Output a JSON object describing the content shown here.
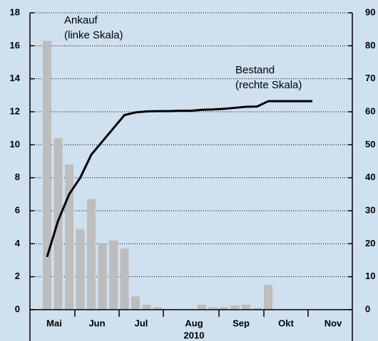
{
  "chart_data": {
    "type": "bar_line",
    "categories": [
      null,
      null,
      null,
      null,
      null,
      null,
      null,
      null,
      null,
      null,
      null,
      null,
      null,
      null,
      null,
      null,
      null,
      null,
      null,
      null,
      null,
      null,
      null,
      null,
      null,
      null,
      null,
      null
    ],
    "months": [
      "Mai",
      "Jun",
      "Jul",
      "Aug",
      "Sep",
      "Okt",
      "Nov"
    ],
    "year": "2010",
    "annotations": [
      "Ankauf",
      "(linke Skala)",
      "Bestand",
      "(rechte Skala)"
    ],
    "series": [
      {
        "name": "Ankauf",
        "color": "#bdbdbd",
        "axis": "y",
        "values": [
          16.3,
          10.4,
          8.8,
          4.9,
          6.7,
          4.0,
          4.2,
          3.7,
          0.8,
          0.3,
          0.15,
          0.05,
          0,
          0,
          0.3,
          0.15,
          0.15,
          0.25,
          0.3,
          0.1,
          1.5,
          0,
          0,
          0,
          0,
          0,
          0,
          0
        ]
      },
      {
        "name": "Bestand",
        "color": "#000000",
        "axis": "y2",
        "values": [
          16,
          27,
          35,
          40,
          47,
          51,
          55,
          59,
          59.8,
          60.1,
          60.2,
          60.2,
          60.3,
          60.3,
          60.6,
          60.7,
          60.9,
          61.2,
          61.5,
          61.6,
          63.2,
          63.2,
          63.2,
          63.2,
          63.2,
          null,
          null,
          null
        ]
      }
    ],
    "ylim": [
      0,
      18
    ],
    "yticks": [
      0,
      2,
      4,
      6,
      8,
      10,
      12,
      14,
      16,
      18
    ],
    "y2lim": [
      0,
      90
    ],
    "y2ticks": [
      0,
      10,
      20,
      30,
      40,
      50,
      60,
      70,
      80,
      90
    ],
    "grid": true
  }
}
